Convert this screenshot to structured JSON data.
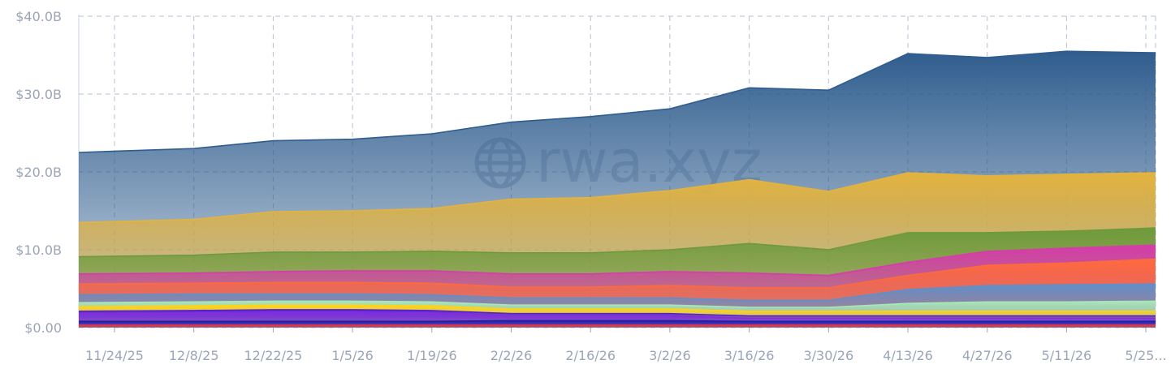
{
  "chart_data": {
    "type": "area",
    "stacked": true,
    "x": [
      "11/24/25",
      "12/8/25",
      "12/22/25",
      "1/5/26",
      "1/19/26",
      "2/2/26",
      "2/16/26",
      "3/2/26",
      "3/16/26",
      "3/30/26",
      "4/13/26",
      "4/27/26",
      "5/11/26",
      "5/25..."
    ],
    "x_tick_labels": [
      "11/24/25",
      "12/8/25",
      "12/22/25",
      "1/5/26",
      "1/19/26",
      "2/2/26",
      "2/16/26",
      "3/2/26",
      "3/16/26",
      "3/30/26",
      "4/13/26",
      "4/27/26",
      "5/11/26",
      "5/25..."
    ],
    "y_tick_labels": [
      "$0.00",
      "$10.0B",
      "$20.0B",
      "$30.0B",
      "$40.0B"
    ],
    "ylim": [
      0,
      40
    ],
    "y_unit": "billions USD",
    "grid": true,
    "legend": "none",
    "watermark": "rwa.xyz",
    "series": [
      {
        "color": "#e23b3b",
        "values": [
          0.3,
          0.3,
          0.3,
          0.3,
          0.3,
          0.3,
          0.3,
          0.3,
          0.3,
          0.3,
          0.3,
          0.3,
          0.3,
          0.3
        ]
      },
      {
        "color": "#1f1fa8",
        "values": [
          0.5,
          0.5,
          0.5,
          0.5,
          0.5,
          0.6,
          0.6,
          0.6,
          0.5,
          0.5,
          0.5,
          0.5,
          0.5,
          0.5
        ]
      },
      {
        "color": "#7c2fe0",
        "values": [
          1.0,
          1.1,
          1.2,
          1.2,
          1.1,
          0.6,
          0.6,
          0.6,
          0.4,
          0.4,
          0.4,
          0.4,
          0.4,
          0.4
        ]
      },
      {
        "color": "#5a1fd0",
        "values": [
          0.3,
          0.3,
          0.3,
          0.3,
          0.3,
          0.3,
          0.3,
          0.3,
          0.3,
          0.3,
          0.3,
          0.3,
          0.3,
          0.3
        ]
      },
      {
        "color": "#ffd21a",
        "values": [
          0.6,
          0.6,
          0.6,
          0.6,
          0.6,
          0.6,
          0.6,
          0.6,
          0.6,
          0.6,
          0.6,
          0.6,
          0.6,
          0.6
        ]
      },
      {
        "color": "#a8e6b8",
        "values": [
          0.5,
          0.5,
          0.5,
          0.5,
          0.5,
          0.5,
          0.5,
          0.5,
          0.5,
          0.5,
          1.0,
          1.2,
          1.2,
          1.3
        ]
      },
      {
        "color": "#5f8fca",
        "values": [
          1.0,
          1.0,
          0.9,
          0.9,
          0.9,
          0.9,
          0.9,
          0.9,
          0.9,
          0.9,
          1.8,
          2.1,
          2.2,
          2.2
        ]
      },
      {
        "color": "#ff6a3d",
        "values": [
          1.4,
          1.4,
          1.5,
          1.5,
          1.5,
          1.4,
          1.4,
          1.6,
          1.6,
          1.6,
          1.8,
          2.6,
          2.8,
          3.2
        ]
      },
      {
        "color": "#d63cab",
        "values": [
          1.3,
          1.3,
          1.4,
          1.5,
          1.6,
          1.7,
          1.7,
          1.8,
          1.9,
          1.6,
          1.7,
          1.8,
          1.9,
          1.8
        ]
      },
      {
        "color": "#6e9a3c",
        "values": [
          2.2,
          2.3,
          2.5,
          2.4,
          2.5,
          2.7,
          2.7,
          2.8,
          3.8,
          3.3,
          3.8,
          2.4,
          2.2,
          2.2
        ]
      },
      {
        "color": "#e3b33e",
        "values": [
          4.4,
          4.6,
          5.2,
          5.3,
          5.5,
          6.9,
          7.1,
          7.6,
          8.2,
          7.5,
          7.7,
          7.3,
          7.3,
          7.1
        ]
      },
      {
        "color": "#2f5d8e",
        "values": [
          9.0,
          9.1,
          9.1,
          9.2,
          9.6,
          9.9,
          10.4,
          10.5,
          11.8,
          13.0,
          15.3,
          15.2,
          15.8,
          15.4
        ]
      }
    ]
  }
}
